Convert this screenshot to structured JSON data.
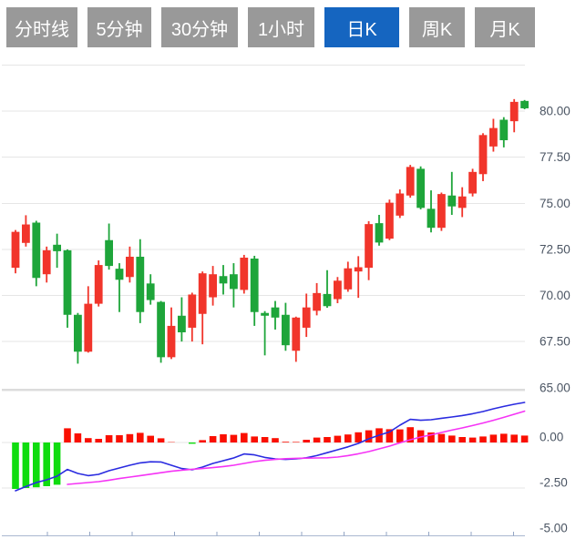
{
  "tab_bar": {
    "tabs": [
      {
        "label": "分时线",
        "active": false
      },
      {
        "label": "5分钟",
        "active": false
      },
      {
        "label": "30分钟",
        "active": false
      },
      {
        "label": "1小时",
        "active": false
      },
      {
        "label": "日K",
        "active": true
      },
      {
        "label": "周K",
        "active": false
      },
      {
        "label": "月K",
        "active": false
      }
    ]
  },
  "colors": {
    "tab_bg": "#999999",
    "tab_active_bg": "#1565c0",
    "tab_text": "#ffffff",
    "candle_up": "#f1352b",
    "candle_down": "#1ea53a",
    "hist_up": "#fa0f00",
    "hist_down": "#0fdc0f",
    "dif_line": "#2a2be0",
    "dea_line": "#f533f5",
    "gridline": "#e6e6e6",
    "panel_band": "#dcdcdc",
    "x_axis": "#aab8d0",
    "x_tick": "#93a5c4",
    "axis_label": "#4b5563",
    "background": "#ffffff"
  },
  "chart_data": {
    "type": "candlestick",
    "title": "",
    "interval_selected": "日K",
    "grid": true,
    "legend_position": "none",
    "price_axis": {
      "side": "right",
      "gridline_values": [
        82.5,
        80,
        77.5,
        75,
        72.5,
        70,
        67.5,
        65
      ],
      "tick_labels": [
        "80.00",
        "77.50",
        "75.00",
        "72.50",
        "70.00",
        "67.50",
        "65.00"
      ],
      "tick_values": [
        80,
        77.5,
        75,
        72.5,
        70,
        67.5,
        65
      ],
      "ylim": [
        64.0,
        82.5
      ]
    },
    "macd_axis": {
      "side": "right",
      "gridline_values": [
        0,
        -2.5
      ],
      "tick_labels": [
        "0.00",
        "-2.50",
        "-5.00"
      ],
      "tick_values": [
        0,
        -2.5,
        -5
      ],
      "ylim": [
        -5.1,
        2.5
      ]
    },
    "candle_format": [
      "open",
      "high",
      "low",
      "close"
    ],
    "candle_color_convention": "red-up-green-down",
    "candles": [
      [
        71.5,
        73.55,
        71.2,
        73.45
      ],
      [
        72.85,
        74.35,
        72.65,
        73.85
      ],
      [
        73.95,
        74.05,
        70.5,
        70.95
      ],
      [
        71.15,
        72.65,
        70.7,
        72.45
      ],
      [
        72.75,
        73.35,
        71.5,
        72.4
      ],
      [
        72.45,
        72.5,
        68.25,
        68.95
      ],
      [
        68.95,
        69.05,
        66.3,
        66.95
      ],
      [
        66.95,
        70.5,
        66.9,
        69.55
      ],
      [
        69.55,
        71.9,
        69.4,
        71.65
      ],
      [
        73.0,
        73.9,
        71.4,
        71.6
      ],
      [
        71.45,
        71.75,
        69.1,
        70.85
      ],
      [
        71.0,
        72.65,
        70.7,
        72.1
      ],
      [
        72.1,
        73.05,
        68.5,
        69.1
      ],
      [
        70.65,
        71.15,
        69.5,
        69.75
      ],
      [
        69.65,
        69.7,
        66.35,
        66.65
      ],
      [
        66.65,
        69.35,
        66.55,
        68.35
      ],
      [
        68.9,
        69.9,
        67.5,
        68.0
      ],
      [
        68.25,
        70.15,
        67.5,
        70.05
      ],
      [
        69.0,
        71.3,
        67.35,
        71.2
      ],
      [
        69.9,
        71.6,
        69.45,
        71.15
      ],
      [
        71.05,
        71.65,
        70.05,
        70.65
      ],
      [
        71.15,
        71.75,
        69.35,
        70.35
      ],
      [
        70.3,
        72.2,
        70.1,
        72.05
      ],
      [
        72.0,
        72.15,
        68.35,
        69.1
      ],
      [
        69.05,
        69.15,
        66.75,
        68.9
      ],
      [
        69.35,
        69.7,
        68.15,
        68.8
      ],
      [
        68.95,
        69.6,
        67.0,
        67.3
      ],
      [
        67.0,
        68.85,
        66.4,
        68.8
      ],
      [
        68.25,
        70.1,
        67.75,
        69.35
      ],
      [
        69.17,
        70.67,
        68.92,
        70.13
      ],
      [
        70.08,
        71.37,
        69.33,
        69.42
      ],
      [
        69.8,
        71.0,
        69.58,
        70.8
      ],
      [
        70.33,
        71.83,
        70.2,
        71.47
      ],
      [
        71.3,
        72.13,
        69.87,
        71.53
      ],
      [
        71.5,
        74.03,
        70.83,
        73.87
      ],
      [
        73.92,
        74.37,
        72.7,
        72.87
      ],
      [
        73.08,
        75.2,
        73.0,
        75.03
      ],
      [
        74.33,
        75.75,
        74.2,
        75.53
      ],
      [
        75.42,
        77.08,
        75.3,
        76.97
      ],
      [
        76.87,
        77.0,
        74.67,
        74.75
      ],
      [
        74.7,
        75.7,
        73.42,
        73.67
      ],
      [
        73.67,
        75.58,
        73.5,
        75.5
      ],
      [
        75.42,
        76.7,
        74.37,
        74.83
      ],
      [
        74.75,
        75.87,
        74.25,
        75.37
      ],
      [
        75.53,
        76.87,
        75.37,
        76.7
      ],
      [
        76.58,
        78.8,
        76.2,
        78.7
      ],
      [
        78.08,
        79.58,
        77.8,
        79.08
      ],
      [
        79.53,
        79.67,
        78.03,
        78.42
      ],
      [
        79.45,
        80.65,
        78.85,
        80.5
      ],
      [
        80.55,
        80.6,
        80.1,
        80.15
      ]
    ],
    "indicator": {
      "name": "MACD",
      "histogram": [
        -2.55,
        -2.5,
        -2.46,
        -2.4,
        -2.32,
        0.78,
        0.5,
        0.24,
        0.2,
        0.4,
        0.4,
        0.46,
        0.53,
        0.37,
        0.23,
        0.02,
        0.0,
        -0.07,
        0.13,
        0.35,
        0.45,
        0.42,
        0.52,
        0.33,
        0.3,
        0.24,
        0.04,
        0.03,
        0.15,
        0.27,
        0.3,
        0.37,
        0.44,
        0.56,
        0.67,
        0.78,
        0.73,
        0.72,
        0.84,
        0.67,
        0.55,
        0.47,
        0.38,
        0.3,
        0.27,
        0.33,
        0.43,
        0.48,
        0.43,
        0.38
      ],
      "dif": [
        -2.65,
        -2.42,
        -2.2,
        -2.05,
        -1.85,
        -1.48,
        -1.7,
        -1.82,
        -1.75,
        -1.55,
        -1.4,
        -1.25,
        -1.12,
        -1.06,
        -1.07,
        -1.25,
        -1.43,
        -1.5,
        -1.35,
        -1.15,
        -1.0,
        -0.85,
        -0.63,
        -0.68,
        -0.82,
        -0.9,
        -0.93,
        -0.9,
        -0.84,
        -0.72,
        -0.56,
        -0.4,
        -0.24,
        -0.05,
        0.2,
        0.4,
        0.58,
        0.95,
        1.27,
        1.22,
        1.25,
        1.33,
        1.4,
        1.48,
        1.58,
        1.7,
        1.85,
        1.98,
        2.1,
        2.2
      ],
      "dea": [
        null,
        null,
        null,
        null,
        null,
        -2.3,
        -2.25,
        -2.2,
        -2.15,
        -2.07,
        -1.98,
        -1.9,
        -1.82,
        -1.74,
        -1.66,
        -1.58,
        -1.52,
        -1.47,
        -1.43,
        -1.38,
        -1.32,
        -1.25,
        -1.15,
        -1.05,
        -0.98,
        -0.93,
        -0.89,
        -0.87,
        -0.86,
        -0.85,
        -0.84,
        -0.8,
        -0.72,
        -0.62,
        -0.5,
        -0.35,
        -0.2,
        -0.02,
        0.15,
        0.3,
        0.42,
        0.55,
        0.68,
        0.8,
        0.93,
        1.07,
        1.22,
        1.38,
        1.55,
        1.72
      ]
    }
  }
}
